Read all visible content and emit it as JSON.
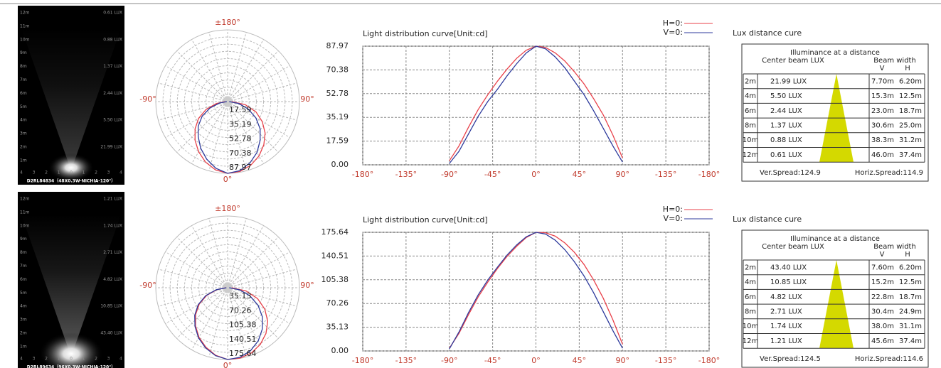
{
  "panels": [
    {
      "beam_image": {
        "distances": [
          "12m",
          "11m",
          "10m",
          "9m",
          "8m",
          "7m",
          "6m",
          "5m",
          "4m",
          "3m",
          "2m",
          "1m"
        ],
        "lux_labels": [
          "0.61 LUX",
          "0.88 LUX",
          "1.37 LUX",
          "2.44 LUX",
          "5.50 LUX",
          "21.99 LUX"
        ],
        "offsets": [
          "4",
          "3",
          "2",
          "1",
          "0",
          "1",
          "2",
          "3",
          "4"
        ],
        "caption": "D2RL84834（48X0.3W-NICHIA-120°）"
      },
      "polar": {
        "top": "±180°",
        "left": "-90°",
        "right": "90°",
        "bottom": "0°",
        "rings": [
          17.59,
          35.19,
          52.78,
          70.38,
          87.97
        ]
      },
      "curve": {
        "type": "line",
        "title": "Light distribution curve[Unit:cd]",
        "x": [
          -90,
          -80,
          -70,
          -60,
          -50,
          -40,
          -30,
          -20,
          -10,
          0,
          10,
          20,
          30,
          40,
          50,
          60,
          70,
          80,
          90
        ],
        "series": [
          {
            "name": "H=0:",
            "color": "#e8414a",
            "values": [
              3,
              14,
              28,
              41,
              52,
              62,
              71,
              79,
              85,
              87.97,
              87,
              83,
              77,
              69,
              60,
              49,
              37,
              22,
              5
            ]
          },
          {
            "name": "V=0:",
            "color": "#2d3a9c",
            "values": [
              1,
              10,
              23,
              36,
              47,
              56,
              66,
              75,
              83,
              87.97,
              86,
              80,
              72,
              62,
              52,
              40,
              27,
              14,
              2
            ]
          }
        ],
        "xlim": [
          -180,
          180
        ],
        "xticks": [
          {
            "value": -180,
            "label": "-180°"
          },
          {
            "value": -135,
            "label": "-135°"
          },
          {
            "value": -90,
            "label": "-90°"
          },
          {
            "value": -45,
            "label": "-45°"
          },
          {
            "value": 0,
            "label": "0°"
          },
          {
            "value": 45,
            "label": "45°"
          },
          {
            "value": 90,
            "label": "90°"
          },
          {
            "value": 135,
            "label": "-135°"
          },
          {
            "value": 180,
            "label": "-180°"
          }
        ],
        "ylim": [
          0,
          87.97
        ],
        "yticks": [
          {
            "value": 0,
            "label": "0.00"
          },
          17.59,
          35.19,
          52.78,
          70.38,
          87.97
        ],
        "grid": true
      },
      "lux_table": {
        "heading": "Lux distance cure",
        "title": "Illuminance at a distance",
        "center_header": "Center beam LUX",
        "width_header": "Beam width",
        "v_header": "V",
        "h_header": "H",
        "rows": [
          [
            "2m",
            "21.99 LUX",
            "7.70m",
            "6.20m"
          ],
          [
            "4m",
            "5.50 LUX",
            "15.3m",
            "12.5m"
          ],
          [
            "6m",
            "2.44 LUX",
            "23.0m",
            "18.7m"
          ],
          [
            "8m",
            "1.37 LUX",
            "30.6m",
            "25.0m"
          ],
          [
            "10m",
            "0.88 LUX",
            "38.3m",
            "31.2m"
          ],
          [
            "12m",
            "0.61 LUX",
            "46.0m",
            "37.4m"
          ]
        ],
        "ver_spread": "Ver.Spread:124.9",
        "horiz_spread": "Horiz.Spread:114.9"
      }
    },
    {
      "beam_image": {
        "distances": [
          "12m",
          "11m",
          "10m",
          "9m",
          "8m",
          "7m",
          "6m",
          "5m",
          "4m",
          "3m",
          "2m",
          "1m"
        ],
        "lux_labels": [
          "1.21 LUX",
          "1.74 LUX",
          "2.71 LUX",
          "4.82 LUX",
          "10.85 LUX",
          "43.40 LUX"
        ],
        "offsets": [
          "4",
          "3",
          "2",
          "1",
          "0",
          "1",
          "2",
          "3",
          "4"
        ],
        "caption": "D2RL89634（96X0.3W-NICHIA-120°）"
      },
      "polar": {
        "top": "±180°",
        "left": "-90°",
        "right": "90°",
        "bottom": "0°",
        "rings": [
          35.13,
          70.26,
          105.38,
          140.51,
          175.64
        ]
      },
      "curve": {
        "type": "line",
        "title": "Light distribution curve[Unit:cd]",
        "x": [
          -90,
          -80,
          -70,
          -60,
          -50,
          -40,
          -30,
          -20,
          -10,
          0,
          10,
          20,
          30,
          40,
          50,
          60,
          70,
          80,
          90
        ],
        "series": [
          {
            "name": "H=0:",
            "color": "#e8414a",
            "values": [
              4,
              26,
              54,
              80,
              102,
              122,
              140,
              155,
              168,
              175.64,
              175,
              170,
              160,
              146,
              128,
              105,
              78,
              46,
              10
            ]
          },
          {
            "name": "V=0:",
            "color": "#2d3a9c",
            "values": [
              3,
              28,
              57,
              83,
              105,
              124,
              142,
              157,
              169,
              175.64,
              173,
              164,
              150,
              132,
              111,
              86,
              58,
              30,
              4
            ]
          }
        ],
        "xlim": [
          -180,
          180
        ],
        "xticks": [
          {
            "value": -180,
            "label": "-180°"
          },
          {
            "value": -135,
            "label": "-135°"
          },
          {
            "value": -90,
            "label": "-90°"
          },
          {
            "value": -45,
            "label": "-45°"
          },
          {
            "value": 0,
            "label": "0°"
          },
          {
            "value": 45,
            "label": "45°"
          },
          {
            "value": 90,
            "label": "90°"
          },
          {
            "value": 135,
            "label": "-135°"
          },
          {
            "value": 180,
            "label": "-180°"
          }
        ],
        "ylim": [
          0,
          175.64
        ],
        "yticks": [
          {
            "value": 0,
            "label": "0.00"
          },
          35.13,
          70.26,
          105.38,
          140.51,
          175.64
        ],
        "grid": true
      },
      "lux_table": {
        "heading": "Lux distance cure",
        "title": "Illuminance at a distance",
        "center_header": "Center beam LUX",
        "width_header": "Beam width",
        "v_header": "V",
        "h_header": "H",
        "rows": [
          [
            "2m",
            "43.40 LUX",
            "7.60m",
            "6.20m"
          ],
          [
            "4m",
            "10.85 LUX",
            "15.2m",
            "12.5m"
          ],
          [
            "6m",
            "4.82 LUX",
            "22.8m",
            "18.7m"
          ],
          [
            "8m",
            "2.71 LUX",
            "30.4m",
            "24.9m"
          ],
          [
            "10m",
            "1.74 LUX",
            "38.0m",
            "31.1m"
          ],
          [
            "12m",
            "1.21 LUX",
            "45.6m",
            "37.4m"
          ]
        ],
        "ver_spread": "Ver.Spread:124.5",
        "horiz_spread": "Horiz.Spread:114.6"
      }
    }
  ]
}
